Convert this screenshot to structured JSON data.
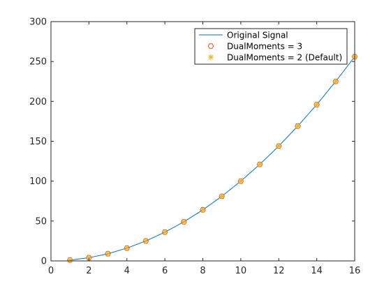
{
  "chart_data": {
    "type": "line",
    "title": "",
    "xlabel": "",
    "ylabel": "",
    "xlim": [
      0,
      16
    ],
    "ylim": [
      0,
      300
    ],
    "xticks": [
      0,
      2,
      4,
      6,
      8,
      10,
      12,
      14,
      16
    ],
    "yticks": [
      0,
      50,
      100,
      150,
      200,
      250,
      300
    ],
    "grid": false,
    "legend_position": "top-right",
    "series": [
      {
        "name": "Original Signal",
        "style": "line",
        "color": "#0072BD",
        "x": [
          1,
          2,
          3,
          4,
          5,
          6,
          7,
          8,
          9,
          10,
          11,
          12,
          13,
          14,
          15,
          16
        ],
        "y": [
          1,
          4,
          9,
          16,
          25,
          36,
          49,
          64,
          81,
          100,
          121,
          144,
          169,
          196,
          225,
          256
        ]
      },
      {
        "name": "DualMoments = 3",
        "style": "hexagon-marker",
        "color": "#D95319",
        "x": [
          1,
          2,
          3,
          4,
          5,
          6,
          7,
          8,
          9,
          10,
          11,
          12,
          13,
          14,
          15,
          16
        ],
        "y": [
          1,
          4,
          9,
          16,
          25,
          36,
          49,
          64,
          81,
          100,
          121,
          144,
          169,
          196,
          225,
          256
        ]
      },
      {
        "name": "DualMoments = 2 (Default)",
        "style": "asterisk-marker",
        "color": "#EDB120",
        "x": [
          1,
          2,
          3,
          4,
          5,
          6,
          7,
          8,
          9,
          10,
          11,
          12,
          13,
          14,
          15,
          16
        ],
        "y": [
          1,
          4,
          9,
          16,
          25,
          36,
          49,
          64,
          81,
          100,
          121,
          144,
          169,
          196,
          225,
          256
        ]
      }
    ]
  }
}
